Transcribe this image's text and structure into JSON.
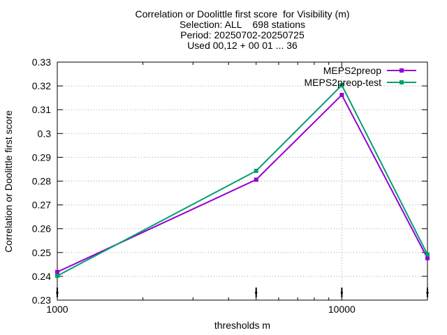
{
  "chart_data": {
    "type": "line",
    "title_lines": [
      "Correlation or Doolittle first score  for Visibility (m)",
      "Selection: ALL    698 stations",
      "Period: 20250702-20250725",
      "Used 00,12 + 00 01 ... 36"
    ],
    "xlabel": "thresholds m",
    "ylabel": "Correlation or Doolittle first score",
    "x_scale": "log",
    "xlim": [
      1000,
      20000
    ],
    "ylim": [
      0.23,
      0.33
    ],
    "x_ticks": [
      1000,
      10000
    ],
    "x_tick_labels": [
      "1000",
      "10000"
    ],
    "y_ticks": [
      0.23,
      0.24,
      0.25,
      0.26,
      0.27,
      0.28,
      0.29,
      0.3,
      0.31,
      0.32,
      0.33
    ],
    "y_tick_labels": [
      "0.23",
      "0.24",
      "0.25",
      "0.26",
      "0.27",
      "0.28",
      "0.29",
      "0.3",
      "0.31",
      "0.32",
      "0.33"
    ],
    "grid": true,
    "legend_position": "top-right",
    "x": [
      1000,
      5000,
      10000,
      20000
    ],
    "series": [
      {
        "name": "MEPS2preop",
        "color": "#9400d3",
        "values": [
          0.2418,
          0.2806,
          0.3162,
          0.2476
        ]
      },
      {
        "name": "MEPS2preop-test",
        "color": "#009e73",
        "values": [
          0.2402,
          0.2843,
          0.3203,
          0.2492
        ]
      }
    ]
  }
}
